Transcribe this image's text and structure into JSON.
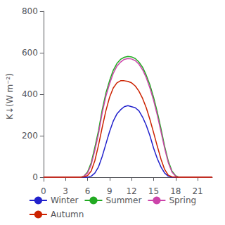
{
  "chart_data": {
    "type": "line",
    "ylabel": "K↓(W m⁻²)",
    "xlim": [
      0,
      23
    ],
    "ylim": [
      -20,
      800
    ],
    "xticks": [
      0,
      3,
      6,
      9,
      12,
      15,
      18,
      21
    ],
    "yticks": [
      0,
      200,
      400,
      600,
      800
    ],
    "grid": false,
    "legend": "bottom",
    "marker": "none",
    "series": [
      {
        "name": "Winter",
        "color": "#2222cc",
        "x": [
          0,
          1,
          2,
          3,
          4,
          5,
          6,
          6.5,
          7,
          7.5,
          8,
          8.5,
          9,
          9.5,
          10,
          10.5,
          11,
          11.5,
          12,
          12.5,
          13,
          13.5,
          14,
          14.5,
          15,
          15.5,
          16,
          16.5,
          17,
          17.5,
          18,
          19,
          20,
          21,
          22,
          23
        ],
        "values": [
          0,
          0,
          0,
          0,
          0,
          0,
          0,
          5,
          20,
          50,
          100,
          160,
          220,
          270,
          305,
          325,
          340,
          345,
          340,
          335,
          320,
          290,
          250,
          200,
          140,
          90,
          50,
          20,
          5,
          0,
          0,
          0,
          0,
          0,
          0,
          0
        ]
      },
      {
        "name": "Summer",
        "color": "#22aa22",
        "x": [
          0,
          1,
          2,
          3,
          4,
          5,
          5.5,
          6,
          6.5,
          7,
          7.5,
          8,
          8.5,
          9,
          9.5,
          10,
          10.5,
          11,
          11.5,
          12,
          12.5,
          13,
          13.5,
          14,
          14.5,
          15,
          15.5,
          16,
          16.5,
          17,
          17.5,
          18,
          18.5,
          19,
          20,
          21,
          22,
          23
        ],
        "values": [
          0,
          0,
          0,
          0,
          0,
          0,
          5,
          25,
          70,
          145,
          225,
          325,
          405,
          465,
          515,
          548,
          568,
          578,
          582,
          580,
          572,
          555,
          530,
          492,
          445,
          385,
          315,
          235,
          150,
          78,
          30,
          7,
          0,
          0,
          0,
          0,
          0,
          0
        ]
      },
      {
        "name": "Spring",
        "color": "#cc44aa",
        "x": [
          0,
          1,
          2,
          3,
          4,
          5,
          5.5,
          6,
          6.5,
          7,
          7.5,
          8,
          8.5,
          9,
          9.5,
          10,
          10.5,
          11,
          11.5,
          12,
          12.5,
          13,
          13.5,
          14,
          14.5,
          15,
          15.5,
          16,
          16.5,
          17,
          17.5,
          18,
          18.5,
          19,
          20,
          21,
          22,
          23
        ],
        "values": [
          0,
          0,
          0,
          0,
          0,
          0,
          5,
          20,
          60,
          130,
          210,
          310,
          390,
          450,
          500,
          535,
          555,
          568,
          572,
          570,
          562,
          545,
          518,
          480,
          430,
          370,
          300,
          220,
          140,
          70,
          25,
          5,
          0,
          0,
          0,
          0,
          0,
          0
        ]
      },
      {
        "name": "Autumn",
        "color": "#cc2200",
        "x": [
          0,
          1,
          2,
          3,
          4,
          5,
          5.5,
          6,
          6.5,
          7,
          7.5,
          8,
          8.5,
          9,
          9.5,
          10,
          10.5,
          11,
          11.5,
          12,
          12.5,
          13,
          13.5,
          14,
          14.5,
          15,
          15.5,
          16,
          16.5,
          17,
          17.5,
          18,
          18.5,
          19,
          20,
          21,
          22,
          23
        ],
        "values": [
          0,
          0,
          0,
          0,
          0,
          0,
          2,
          8,
          30,
          80,
          155,
          240,
          320,
          385,
          430,
          455,
          465,
          465,
          462,
          455,
          440,
          415,
          380,
          335,
          278,
          215,
          150,
          88,
          38,
          10,
          2,
          0,
          0,
          0,
          0,
          0,
          0,
          0
        ]
      }
    ]
  }
}
